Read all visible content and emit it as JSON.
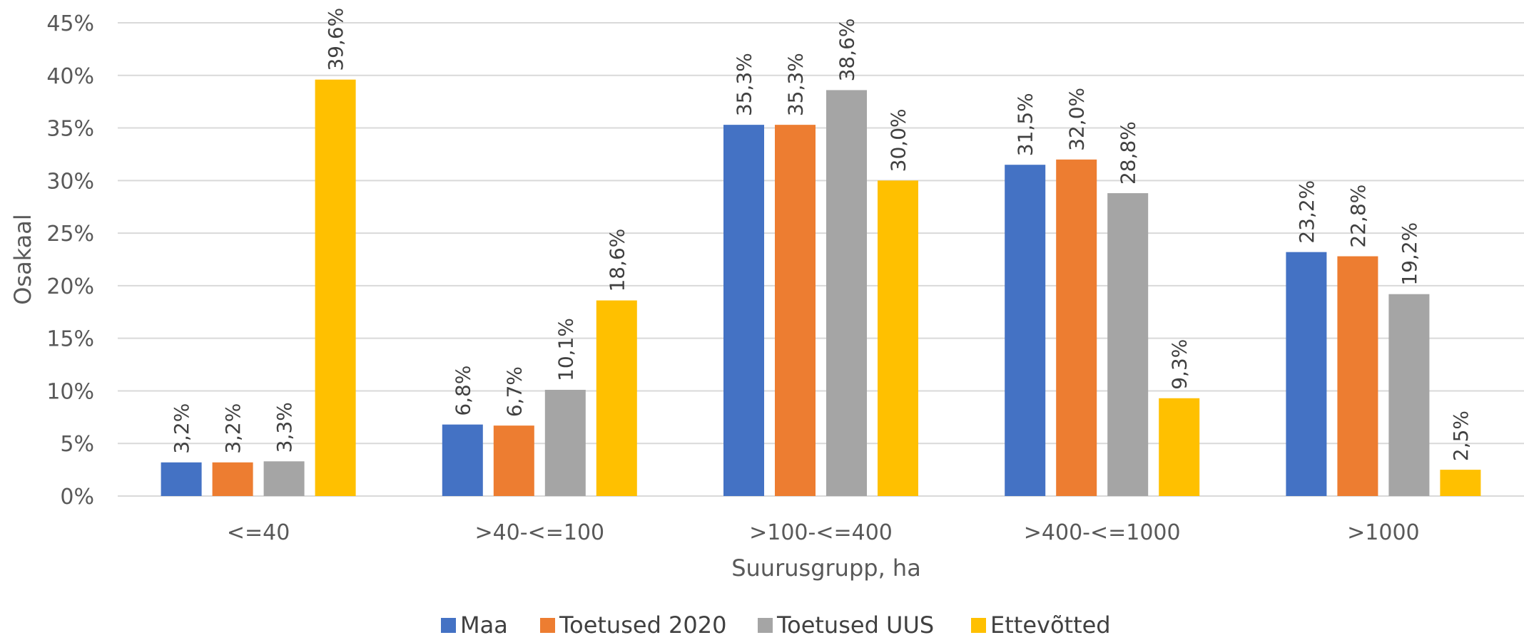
{
  "chart_data": {
    "type": "bar",
    "categories": [
      "<=40",
      ">40-<=100",
      ">100-<=400",
      ">400-<=1000",
      ">1000"
    ],
    "series": [
      {
        "name": "Maa",
        "color": "#4472C4",
        "values": [
          3.2,
          6.8,
          35.3,
          31.5,
          23.2
        ],
        "labels": [
          "3,2%",
          "6,8%",
          "35,3%",
          "31,5%",
          "23,2%"
        ]
      },
      {
        "name": "Toetused 2020",
        "color": "#ED7D31",
        "values": [
          3.2,
          6.7,
          35.3,
          32.0,
          22.8
        ],
        "labels": [
          "3,2%",
          "6,7%",
          "35,3%",
          "32,0%",
          "22,8%"
        ]
      },
      {
        "name": "Toetused UUS",
        "color": "#A5A5A5",
        "values": [
          3.3,
          10.1,
          38.6,
          28.8,
          19.2
        ],
        "labels": [
          "3,3%",
          "10,1%",
          "38,6%",
          "28,8%",
          "19,2%"
        ]
      },
      {
        "name": "Ettevõtted",
        "color": "#FFC000",
        "values": [
          39.6,
          18.6,
          30.0,
          9.3,
          2.5
        ],
        "labels": [
          "39,6%",
          "18,6%",
          "30,0%",
          "9,3%",
          "2,5%"
        ]
      }
    ],
    "ylim": [
      0,
      45
    ],
    "yticks": [
      0,
      5,
      10,
      15,
      20,
      25,
      30,
      35,
      40,
      45
    ],
    "ytick_labels": [
      "0%",
      "5%",
      "10%",
      "15%",
      "20%",
      "25%",
      "30%",
      "35%",
      "40%",
      "45%"
    ],
    "xlabel": "Suurusgrupp, ha",
    "ylabel": "Osakaal",
    "title": "",
    "grid": true,
    "legend_position": "bottom"
  }
}
